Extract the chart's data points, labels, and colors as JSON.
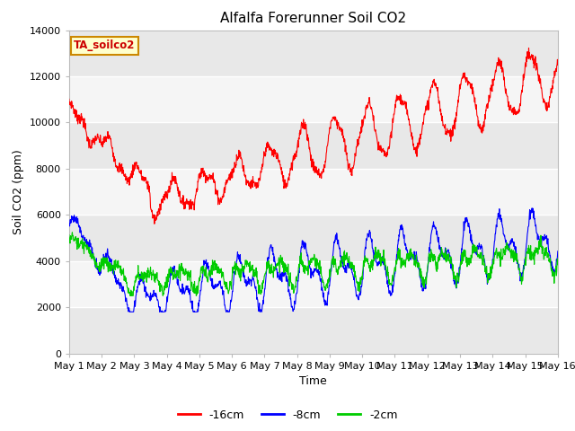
{
  "title": "Alfalfa Forerunner Soil CO2",
  "xlabel": "Time",
  "ylabel": "Soil CO2 (ppm)",
  "ylim": [
    0,
    14000
  ],
  "yticks": [
    0,
    2000,
    4000,
    6000,
    8000,
    10000,
    12000,
    14000
  ],
  "legend_label": "TA_soilco2",
  "series_labels": [
    "-16cm",
    "-8cm",
    "-2cm"
  ],
  "series_colors": [
    "#ff0000",
    "#0000ff",
    "#00cc00"
  ],
  "background_color": "#ffffff",
  "plot_bg_color": "#e8e8e8",
  "plot_bg_light": "#f5f5f5",
  "grid_color": "#ffffff",
  "title_fontsize": 11,
  "axis_fontsize": 9,
  "tick_fontsize": 8,
  "n_points": 1500
}
